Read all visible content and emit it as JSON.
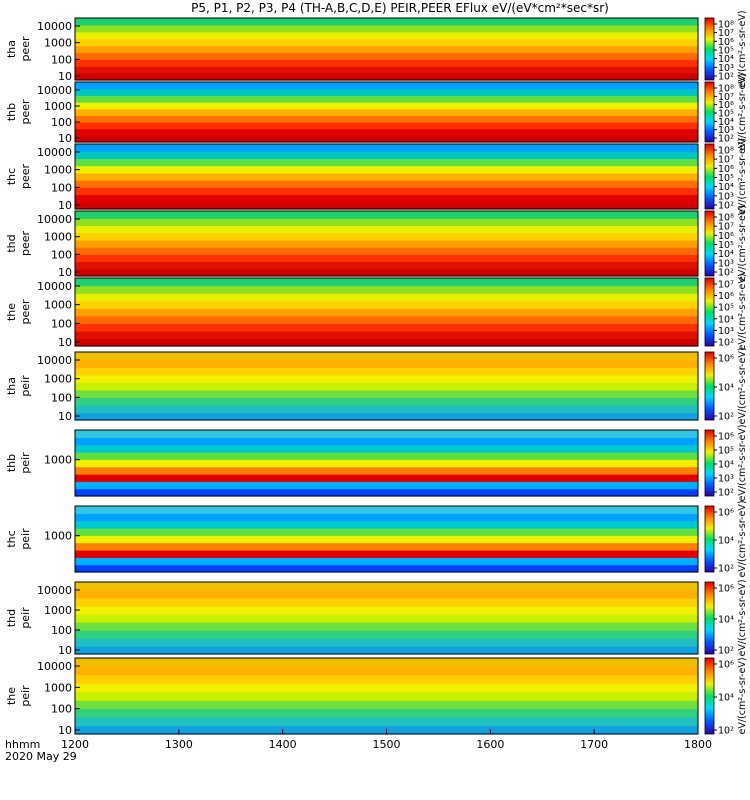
{
  "chart_data": {
    "type": "heatmap",
    "title": "P5, P1, P2, P3, P4 (TH-A,B,C,D,E) PEIR,PEER EFlux eV/(eV*cm²*sec*sr)",
    "x_ticks": [
      1200,
      1300,
      1400,
      1500,
      1600,
      1700,
      1800
    ],
    "x_label_line1": "hhmm",
    "x_label_line2": "2020 May 29",
    "x_range": [
      1200,
      1800
    ],
    "y_scale": "log",
    "colormap": "rainbow",
    "panels": [
      {
        "probe": "tha",
        "species": "peer",
        "y_ticks": [
          "10000",
          "1000",
          "100",
          "10"
        ],
        "cb_ticks": [
          "10⁸",
          "10⁷",
          "10⁶",
          "10⁵",
          "10⁴",
          "10³",
          "10²"
        ],
        "cb_label": "eV/(cm²-s-sr-eV)"
      },
      {
        "probe": "thb",
        "species": "peer",
        "y_ticks": [
          "10000",
          "1000",
          "100",
          "10"
        ],
        "cb_ticks": [
          "10⁸",
          "10⁷",
          "10⁶",
          "10⁵",
          "10⁴",
          "10³",
          "10²"
        ],
        "cb_label": "eV/(cm²-s-sr-eV)"
      },
      {
        "probe": "thc",
        "species": "peer",
        "y_ticks": [
          "10000",
          "1000",
          "100",
          "10"
        ],
        "cb_ticks": [
          "10⁸",
          "10⁷",
          "10⁶",
          "10⁵",
          "10⁴",
          "10³",
          "10²"
        ],
        "cb_label": "eV/(cm²-s-sr-eV)"
      },
      {
        "probe": "thd",
        "species": "peer",
        "y_ticks": [
          "10000",
          "1000",
          "100",
          "10"
        ],
        "cb_ticks": [
          "10⁸",
          "10⁷",
          "10⁶",
          "10⁵",
          "10⁴",
          "10³",
          "10²"
        ],
        "cb_label": "eV/(cm²-s-sr-eV)"
      },
      {
        "probe": "the",
        "species": "peer",
        "y_ticks": [
          "10000",
          "1000",
          "100",
          "10"
        ],
        "cb_ticks": [
          "10⁷",
          "10⁶",
          "10⁵",
          "10⁴",
          "10³",
          "10²"
        ],
        "cb_label": "eV/(cm²-s-sr-eV)"
      },
      {
        "probe": "tha",
        "species": "peir",
        "y_ticks": [
          "10000",
          "1000",
          "100",
          "10"
        ],
        "cb_ticks": [
          "10⁶",
          "10⁴",
          "10²"
        ],
        "cb_label": "eV/(cm²-s-sr-eV)"
      },
      {
        "probe": "thb",
        "species": "peir",
        "y_ticks": [
          "1000"
        ],
        "cb_ticks": [
          "10⁶",
          "10⁵",
          "10⁴",
          "10³",
          "10²"
        ],
        "cb_label": "eV/(cm²-s-sr-eV)"
      },
      {
        "probe": "thc",
        "species": "peir",
        "y_ticks": [
          "1000"
        ],
        "cb_ticks": [
          "10⁶",
          "10⁴",
          "10²"
        ],
        "cb_label": "eV/(cm²-s-sr-eV)"
      },
      {
        "probe": "thd",
        "species": "peir",
        "y_ticks": [
          "10000",
          "1000",
          "100",
          "10"
        ],
        "cb_ticks": [
          "10⁶",
          "10⁴",
          "10²"
        ],
        "cb_label": "eV/(cm²-s-sr-eV)"
      },
      {
        "probe": "the",
        "species": "peir",
        "y_ticks": [
          "10000",
          "1000",
          "100",
          "10"
        ],
        "cb_ticks": [
          "10⁶",
          "10⁴",
          "10²"
        ],
        "cb_label": "eV/(cm²-s-sr-eV)"
      }
    ],
    "bottom_colorbar_label": "[eV/(cm²-s-sr-eV)]"
  }
}
